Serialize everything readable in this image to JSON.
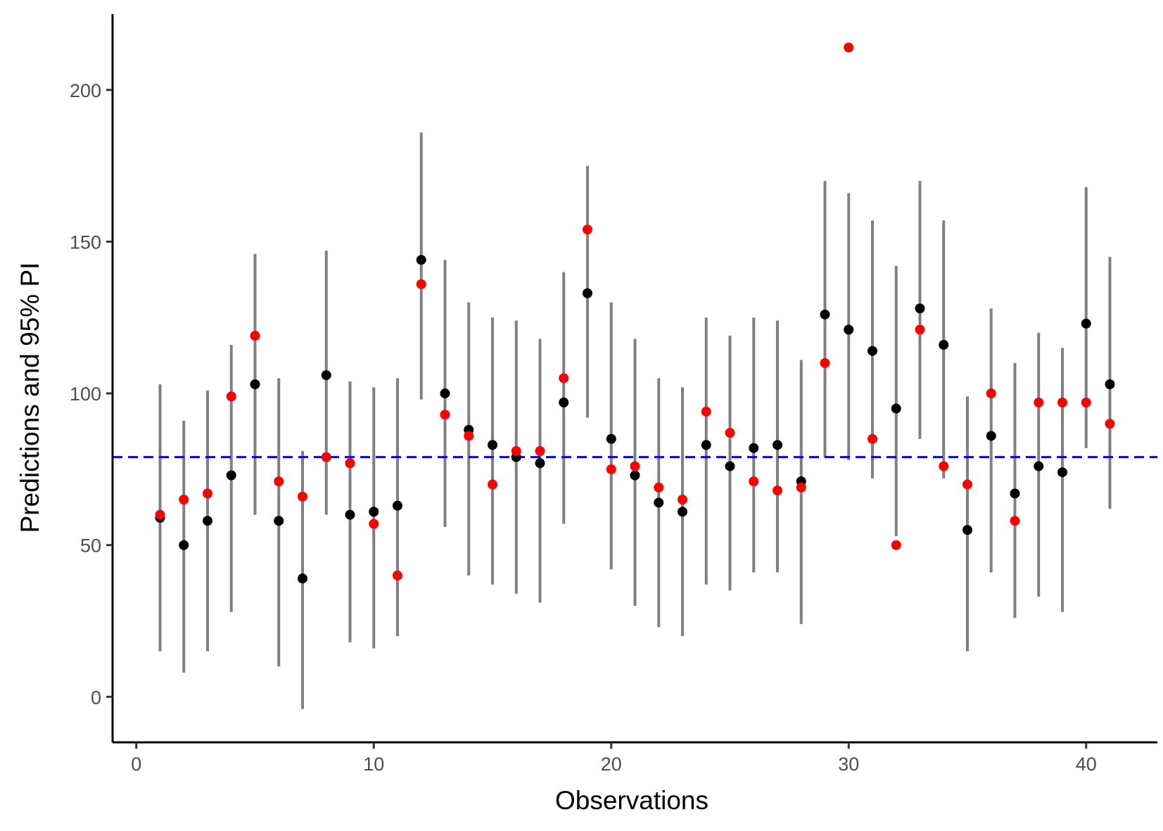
{
  "chart_data": {
    "type": "scatter",
    "title": "",
    "xlabel": "Observations",
    "ylabel": "Predictions and 95% PI",
    "xlim": [
      -1,
      43
    ],
    "ylim": [
      -15,
      225
    ],
    "x_ticks": [
      0,
      10,
      20,
      30,
      40
    ],
    "y_ticks": [
      0,
      50,
      100,
      150,
      200
    ],
    "grid": false,
    "legend": "none",
    "reference_line": {
      "y": 79,
      "style": "dashed",
      "color": "#0000ff"
    },
    "x": [
      1,
      2,
      3,
      4,
      5,
      6,
      7,
      8,
      9,
      10,
      11,
      12,
      13,
      14,
      15,
      16,
      17,
      18,
      19,
      20,
      21,
      22,
      23,
      24,
      25,
      26,
      27,
      28,
      29,
      30,
      31,
      32,
      33,
      34,
      35,
      36,
      37,
      38,
      39,
      40,
      41
    ],
    "series": [
      {
        "role": "interval",
        "color": "#808080",
        "lower": [
          15,
          8,
          15,
          28,
          60,
          10,
          -4,
          60,
          18,
          16,
          20,
          98,
          56,
          40,
          37,
          34,
          31,
          57,
          92,
          42,
          30,
          23,
          20,
          37,
          35,
          41,
          41,
          24,
          79,
          78,
          72,
          53,
          85,
          72,
          15,
          41,
          26,
          33,
          28,
          82,
          62
        ],
        "upper": [
          103,
          91,
          101,
          116,
          146,
          105,
          81,
          147,
          104,
          102,
          105,
          186,
          144,
          130,
          125,
          124,
          118,
          140,
          175,
          130,
          118,
          105,
          102,
          125,
          119,
          125,
          124,
          111,
          170,
          166,
          157,
          142,
          170,
          157,
          99,
          128,
          110,
          120,
          115,
          168,
          145
        ]
      },
      {
        "role": "prediction",
        "color": "#000000",
        "values": [
          59,
          50,
          58,
          73,
          103,
          58,
          39,
          106,
          60,
          61,
          63,
          144,
          100,
          88,
          83,
          79,
          77,
          97,
          133,
          85,
          73,
          64,
          61,
          83,
          76,
          82,
          83,
          71,
          126,
          121,
          114,
          95,
          128,
          116,
          55,
          86,
          67,
          76,
          74,
          123,
          103
        ]
      },
      {
        "role": "observed",
        "color": "#ff0000",
        "values": [
          60,
          65,
          67,
          99,
          119,
          71,
          66,
          79,
          77,
          57,
          40,
          136,
          93,
          86,
          70,
          81,
          81,
          105,
          154,
          75,
          76,
          69,
          65,
          94,
          87,
          71,
          68,
          69,
          110,
          214,
          85,
          50,
          121,
          76,
          70,
          100,
          58,
          97,
          97,
          97,
          90
        ]
      }
    ]
  }
}
